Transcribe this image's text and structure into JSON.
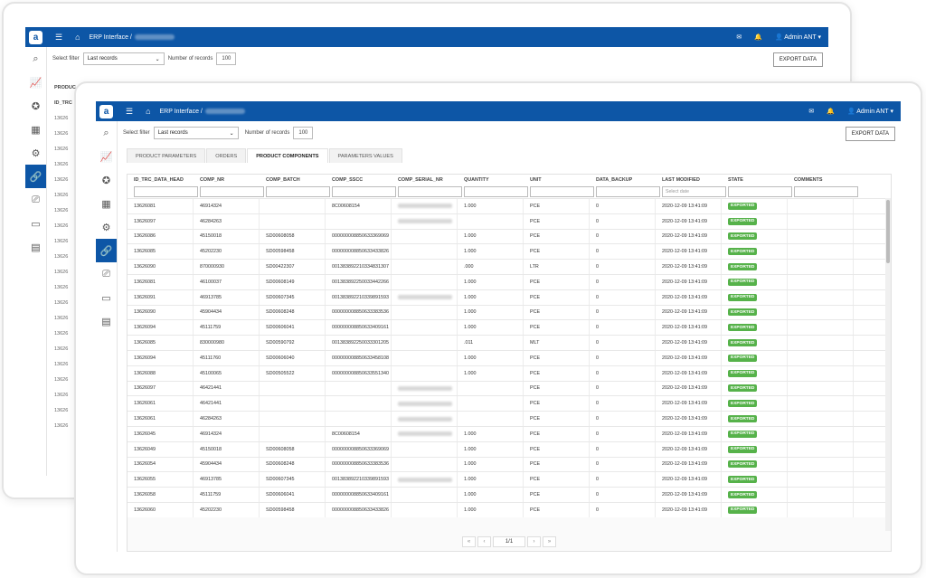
{
  "header": {
    "logo": "a",
    "breadcrumb": "ERP Interface /",
    "user": "Admin ANT",
    "notification_count": "8"
  },
  "sidebar_icons": [
    "search-icon",
    "chart-icon",
    "award-icon",
    "factory-icon",
    "gears-icon",
    "link-icon",
    "monitor-download-icon",
    "desktop-icon",
    "document-icon"
  ],
  "filters": {
    "select_filter_label": "Select filter",
    "select_filter_value": "Last records",
    "records_label": "Number of records",
    "records_value": "100",
    "export_label": "EXPORT DATA"
  },
  "back_window": {
    "tab_fragment": "PRODUC",
    "column_fragment": "ID_TRC",
    "id_fragments": [
      "13626",
      "13626",
      "13626",
      "13626",
      "13626",
      "13626",
      "13626",
      "13626",
      "13626",
      "13626",
      "13626",
      "13626",
      "13626",
      "13626",
      "13626",
      "13626",
      "13626",
      "13626",
      "13626",
      "13626",
      "13626"
    ]
  },
  "tabs": [
    {
      "label": "PRODUCT PARAMETERS",
      "active": false
    },
    {
      "label": "ORDERS",
      "active": false
    },
    {
      "label": "PRODUCT COMPONENTS",
      "active": true
    },
    {
      "label": "PARAMETERS VALUES",
      "active": false
    }
  ],
  "table": {
    "columns": [
      "ID_TRC_DATA_HEAD",
      "COMP_NR",
      "COMP_BATCH",
      "COMP_SSCC",
      "COMP_SERIAL_NR",
      "QUANTITY",
      "UNIT",
      "DATA_BACKUP",
      "LAST MODIFIED",
      "STATE",
      "COMMENTS"
    ],
    "date_placeholder": "Select date",
    "rows": [
      [
        "13626081",
        "46914324",
        "",
        "8C00608154",
        "~",
        "1.000",
        "PCE",
        "0",
        "2020-12-09 13:41:09",
        "EXPORTED",
        ""
      ],
      [
        "13626097",
        "46284263",
        "",
        "",
        "~",
        "",
        "PCE",
        "0",
        "2020-12-09 13:41:09",
        "EXPORTED",
        ""
      ],
      [
        "13626086",
        "45150018",
        "SD00608058",
        "000000008850633369069",
        "",
        "1.000",
        "PCE",
        "0",
        "2020-12-09 13:41:09",
        "EXPORTED",
        ""
      ],
      [
        "13626085",
        "45202230",
        "SD00598458",
        "000000008850633433826",
        "",
        "1.000",
        "PCE",
        "0",
        "2020-12-09 13:41:09",
        "EXPORTED",
        ""
      ],
      [
        "13626090",
        "870000930",
        "SD00422307",
        "001383892210334831307",
        "",
        ".000",
        "LTR",
        "0",
        "2020-12-09 13:41:09",
        "EXPORTED",
        ""
      ],
      [
        "13626081",
        "46100037",
        "SD00608149",
        "001383892250033442266",
        "",
        "1.000",
        "PCE",
        "0",
        "2020-12-09 13:41:09",
        "EXPORTED",
        ""
      ],
      [
        "13626091",
        "46913785",
        "SD00607345",
        "001383892210339891593",
        "~",
        "1.000",
        "PCE",
        "0",
        "2020-12-09 13:41:09",
        "EXPORTED",
        ""
      ],
      [
        "13626090",
        "45904434",
        "SD00608248",
        "000000008850633383536",
        "",
        "1.000",
        "PCE",
        "0",
        "2020-12-09 13:41:09",
        "EXPORTED",
        ""
      ],
      [
        "13626094",
        "45111759",
        "SD00606041",
        "000000008850633409161",
        "",
        "1.000",
        "PCE",
        "0",
        "2020-12-09 13:41:09",
        "EXPORTED",
        ""
      ],
      [
        "13626085",
        "830000980",
        "SD00590792",
        "001383892250033301205",
        "",
        ".011",
        "MLT",
        "0",
        "2020-12-09 13:41:09",
        "EXPORTED",
        ""
      ],
      [
        "13626094",
        "45111760",
        "SD00606040",
        "000000008850633458108",
        "",
        "1.000",
        "PCE",
        "0",
        "2020-12-09 13:41:09",
        "EXPORTED",
        ""
      ],
      [
        "13626088",
        "45100065",
        "SD00505522",
        "000000008850633551340",
        "",
        "1.000",
        "PCE",
        "0",
        "2020-12-09 13:41:09",
        "EXPORTED",
        ""
      ],
      [
        "13626097",
        "46421441",
        "",
        "",
        "~",
        "",
        "PCE",
        "0",
        "2020-12-09 13:41:09",
        "EXPORTED",
        ""
      ],
      [
        "13626061",
        "46421441",
        "",
        "",
        "~",
        "",
        "PCE",
        "0",
        "2020-12-09 13:41:09",
        "EXPORTED",
        ""
      ],
      [
        "13626061",
        "46284263",
        "",
        "",
        "~",
        "",
        "PCE",
        "0",
        "2020-12-09 13:41:09",
        "EXPORTED",
        ""
      ],
      [
        "13626045",
        "46914324",
        "",
        "8C00608154",
        "~",
        "1.000",
        "PCE",
        "0",
        "2020-12-09 13:41:09",
        "EXPORTED",
        ""
      ],
      [
        "13626049",
        "45150018",
        "SD00608058",
        "000000008850633369069",
        "",
        "1.000",
        "PCE",
        "0",
        "2020-12-09 13:41:09",
        "EXPORTED",
        ""
      ],
      [
        "13626054",
        "45904434",
        "SD00608248",
        "000000008850633383536",
        "",
        "1.000",
        "PCE",
        "0",
        "2020-12-09 13:41:09",
        "EXPORTED",
        ""
      ],
      [
        "13626055",
        "46913785",
        "SD00607345",
        "001383892210339891593",
        "~",
        "1.000",
        "PCE",
        "0",
        "2020-12-09 13:41:09",
        "EXPORTED",
        ""
      ],
      [
        "13626058",
        "45111759",
        "SD00606041",
        "000000008850633409161",
        "",
        "1.000",
        "PCE",
        "0",
        "2020-12-09 13:41:09",
        "EXPORTED",
        ""
      ],
      [
        "13626060",
        "45202230",
        "SD00598458",
        "000000008850633433826",
        "",
        "1.000",
        "PCE",
        "0",
        "2020-12-09 13:41:09",
        "EXPORTED",
        ""
      ]
    ]
  },
  "pager": {
    "first": "«",
    "prev": "‹",
    "page": "1/1",
    "next": "›",
    "last": "»"
  }
}
